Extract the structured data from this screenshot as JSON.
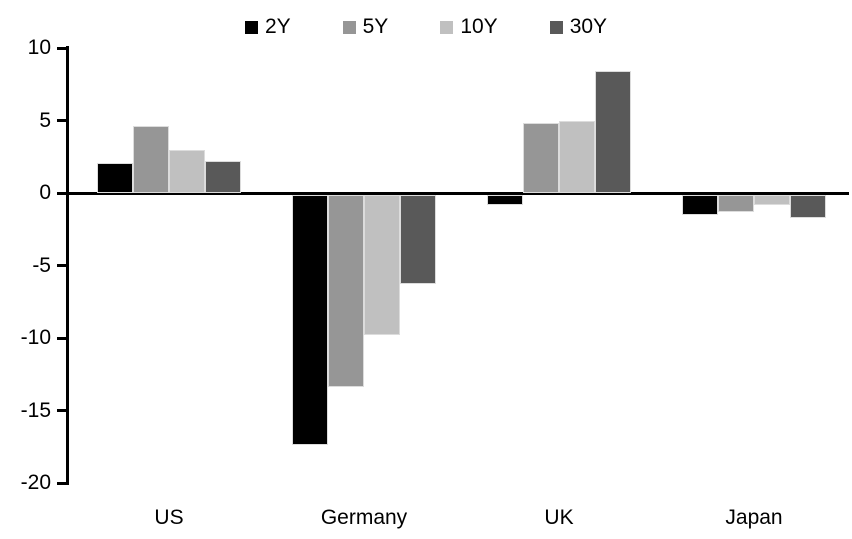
{
  "chart_data": {
    "type": "bar",
    "title": "",
    "xlabel": "",
    "ylabel": "",
    "categories": [
      "US",
      "Germany",
      "UK",
      "Japan"
    ],
    "series": [
      {
        "name": "2Y",
        "color": "#000000",
        "values": [
          2.1,
          -17.4,
          -0.8,
          -1.5
        ]
      },
      {
        "name": "5Y",
        "color": "#969696",
        "values": [
          4.6,
          -13.4,
          4.8,
          -1.3
        ]
      },
      {
        "name": "10Y",
        "color": "#C0C0C0",
        "values": [
          3.0,
          -9.8,
          5.0,
          -0.8
        ]
      },
      {
        "name": "30Y",
        "color": "#595959",
        "values": [
          2.2,
          -6.3,
          8.4,
          -1.7
        ]
      }
    ],
    "ylim": [
      -20,
      10
    ],
    "yticks": [
      10,
      5,
      0,
      -5,
      -10,
      -15,
      -20
    ],
    "grid": false,
    "legend_position": "top",
    "axis_color": "#000000",
    "background_color": "#FFFFFF"
  }
}
